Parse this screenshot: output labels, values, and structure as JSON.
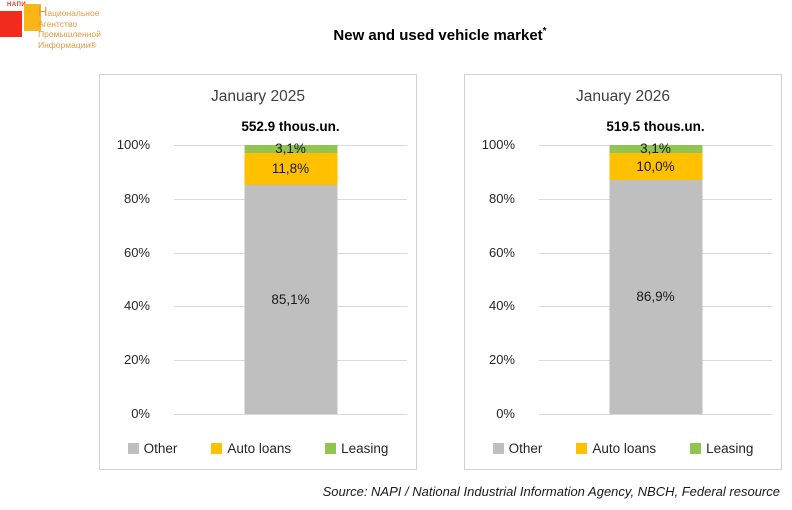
{
  "page": {
    "title_text": "New and used vehicle market",
    "title_superscript": "*",
    "source": "Source: NAPI / National Industrial Information Agency, NBCH, Federal resource"
  },
  "logo": {
    "wordmark": "НАПИ",
    "lines": [
      "Национальное",
      "Агентство",
      "Промышленной",
      "Информации®"
    ]
  },
  "y_axis": {
    "ticks": [
      "100%",
      "80%",
      "60%",
      "40%",
      "20%",
      "0%"
    ]
  },
  "legend": [
    {
      "label": "Other",
      "color": "#bfbfbf"
    },
    {
      "label": "Auto loans",
      "color": "#ffc000"
    },
    {
      "label": "Leasing",
      "color": "#92c452"
    }
  ],
  "colors": {
    "other": "#bfbfbf",
    "auto_loans": "#ffc000",
    "leasing": "#92c452",
    "gridline": "#d9d9d9",
    "panel_border": "#d2d2d2",
    "logo_red": "#f12b1e",
    "logo_orange": "#fcb519",
    "logo_text": "#e2993d"
  },
  "chart_data": [
    {
      "type": "bar",
      "stacked": true,
      "title": "January 2025",
      "total_label": "552.9 thous.un.",
      "categories": [
        "January 2025"
      ],
      "series": [
        {
          "name": "Other",
          "value": 85.1,
          "label": "85,1%",
          "color": "#bfbfbf"
        },
        {
          "name": "Auto loans",
          "value": 11.8,
          "label": "11,8%",
          "color": "#ffc000"
        },
        {
          "name": "Leasing",
          "value": 3.1,
          "label": "3,1%",
          "color": "#92c452"
        }
      ],
      "xlabel": "",
      "ylabel": "",
      "ylim": [
        0,
        100
      ],
      "grid": true,
      "legend_position": "bottom"
    },
    {
      "type": "bar",
      "stacked": true,
      "title": "January 2026",
      "total_label": "519.5 thous.un.",
      "categories": [
        "January 2026"
      ],
      "series": [
        {
          "name": "Other",
          "value": 86.9,
          "label": "86,9%",
          "color": "#bfbfbf"
        },
        {
          "name": "Auto loans",
          "value": 10.0,
          "label": "10,0%",
          "color": "#ffc000"
        },
        {
          "name": "Leasing",
          "value": 3.1,
          "label": "3,1%",
          "color": "#92c452"
        }
      ],
      "xlabel": "",
      "ylabel": "",
      "ylim": [
        0,
        100
      ],
      "grid": true,
      "legend_position": "bottom"
    }
  ]
}
